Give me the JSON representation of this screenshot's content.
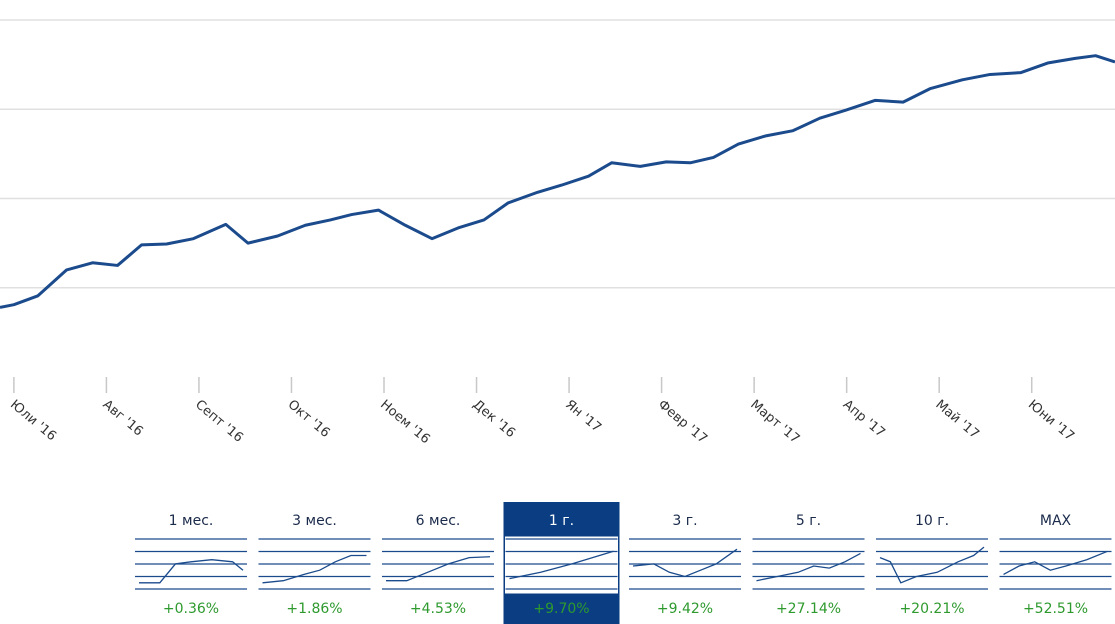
{
  "chart_data": {
    "type": "line",
    "xlim": [
      -0.15,
      11.9
    ],
    "ylim": [
      0,
      4
    ],
    "yticks": [
      1,
      2,
      3,
      4
    ],
    "grid": true,
    "xticks": [
      {
        "value": 0,
        "label": "Юли '16"
      },
      {
        "value": 1,
        "label": "Авг '16"
      },
      {
        "value": 2,
        "label": "Септ '16"
      },
      {
        "value": 3,
        "label": "Окт '16"
      },
      {
        "value": 4,
        "label": "Ноем '16"
      },
      {
        "value": 5,
        "label": "Дек '16"
      },
      {
        "value": 6,
        "label": "Ян '17"
      },
      {
        "value": 7,
        "label": "Февр '17"
      },
      {
        "value": 8,
        "label": "Март '17"
      },
      {
        "value": 9,
        "label": "Апр '17"
      },
      {
        "value": 10,
        "label": "Май '17"
      },
      {
        "value": 11,
        "label": "Юни '17"
      }
    ],
    "x": [
      -0.15,
      0,
      0.26,
      0.57,
      0.85,
      1.12,
      1.38,
      1.65,
      1.94,
      2.29,
      2.53,
      2.85,
      3.15,
      3.42,
      3.65,
      3.94,
      4.23,
      4.52,
      4.8,
      5.08,
      5.34,
      5.66,
      5.92,
      6.21,
      6.46,
      6.77,
      7.05,
      7.31,
      7.56,
      7.83,
      8.12,
      8.42,
      8.71,
      8.99,
      9.31,
      9.61,
      9.9,
      10.25,
      10.55,
      10.88,
      11.18,
      11.47,
      11.69,
      11.9
    ],
    "series": [
      {
        "color": "#1b4b8c",
        "values": [
          0.78,
          0.81,
          0.91,
          1.2,
          1.28,
          1.25,
          1.48,
          1.49,
          1.55,
          1.71,
          1.5,
          1.58,
          1.7,
          1.76,
          1.82,
          1.87,
          1.7,
          1.55,
          1.67,
          1.76,
          1.95,
          2.07,
          2.15,
          2.25,
          2.4,
          2.36,
          2.41,
          2.4,
          2.46,
          2.61,
          2.7,
          2.76,
          2.9,
          2.99,
          3.1,
          3.08,
          3.23,
          3.33,
          3.39,
          3.41,
          3.52,
          3.57,
          3.6,
          3.53
        ]
      }
    ]
  },
  "periods": [
    {
      "label": "1 мес.",
      "change": "+0.36%"
    },
    {
      "label": "3 мес.",
      "change": "+1.86%"
    },
    {
      "label": "6 мес.",
      "change": "+4.53%"
    },
    {
      "label": "1 г.",
      "change": "+9.70%"
    },
    {
      "label": "3 г.",
      "change": "+9.42%"
    },
    {
      "label": "5 г.",
      "change": "+27.14%"
    },
    {
      "label": "10 г.",
      "change": "+20.21%"
    },
    {
      "label": "MAX",
      "change": "+52.51%"
    }
  ],
  "active_period": 3
}
